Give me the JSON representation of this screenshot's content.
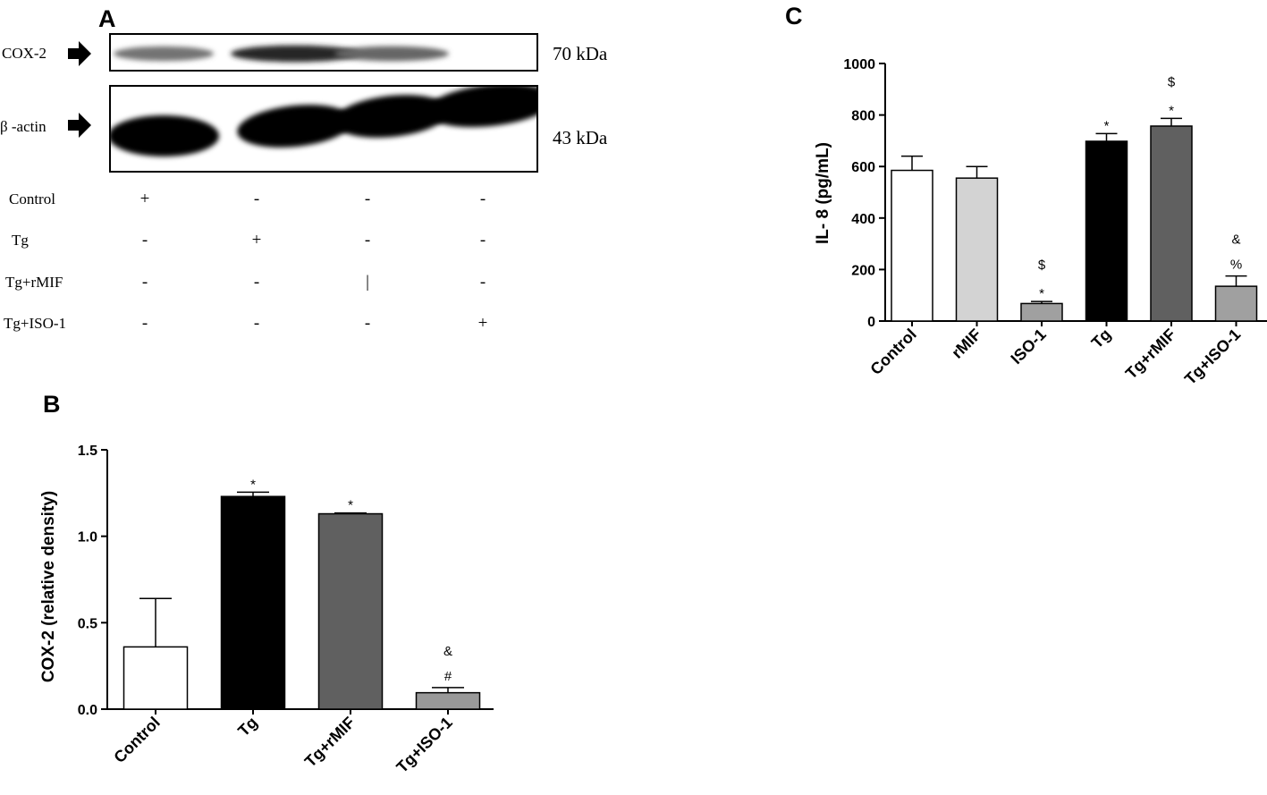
{
  "panels": {
    "a": {
      "letter": "A"
    },
    "b": {
      "letter": "B"
    },
    "c": {
      "letter": "C"
    }
  },
  "blot": {
    "bands": [
      {
        "label": "COX-2",
        "size": "70 kDa",
        "intensities": [
          0.55,
          0.85,
          0.6,
          0.05
        ]
      },
      {
        "label": "β -actin",
        "size": "43 kDa",
        "intensities": [
          1,
          1,
          1,
          1
        ]
      }
    ],
    "conditions": [
      {
        "label": "Control",
        "signs": [
          "+",
          "-",
          "-",
          "-"
        ]
      },
      {
        "label": "Tg",
        "signs": [
          "-",
          "+",
          "-",
          "-"
        ]
      },
      {
        "label": "Tg+rMIF",
        "signs": [
          "-",
          "-",
          "|",
          "-"
        ]
      },
      {
        "label": "Tg+ISO-1",
        "signs": [
          "-",
          "-",
          "-",
          "+"
        ]
      }
    ]
  },
  "chart_data": [
    {
      "type": "bar",
      "panel": "B",
      "ylabel": "COX-2 (relative density)",
      "ylim": [
        0,
        1.5
      ],
      "yticks": [
        "0.0",
        "0.5",
        "1.0",
        "1.5"
      ],
      "ytick_values": [
        0,
        0.5,
        1.0,
        1.5
      ],
      "categories": [
        "Control",
        "Tg",
        "Tg+rMIF",
        "Tg+ISO-1"
      ],
      "values": [
        0.36,
        1.23,
        1.13,
        0.095
      ],
      "errors": [
        0.28,
        0.025,
        0.005,
        0.03
      ],
      "colors": [
        "#ffffff",
        "#000000",
        "#606060",
        "#999999"
      ],
      "annotations": [
        [],
        [
          "*"
        ],
        [
          "*"
        ],
        [
          "#",
          "&"
        ]
      ]
    },
    {
      "type": "bar",
      "panel": "C",
      "ylabel": "IL- 8 (pg/mL)",
      "ylim": [
        0,
        1000
      ],
      "yticks": [
        "0",
        "200",
        "400",
        "600",
        "800",
        "1000"
      ],
      "ytick_values": [
        0,
        200,
        400,
        600,
        800,
        1000
      ],
      "categories": [
        "Control",
        "rMIF",
        "ISO-1",
        "Tg",
        "Tg+rMIF",
        "Tg+ISO-1"
      ],
      "values": [
        585,
        555,
        68,
        698,
        757,
        135
      ],
      "errors": [
        55,
        45,
        8,
        30,
        30,
        40
      ],
      "colors": [
        "#ffffff",
        "#d3d3d3",
        "#a0a0a0",
        "#000000",
        "#606060",
        "#a0a0a0"
      ],
      "annotations": [
        [],
        [],
        [
          "*",
          "$"
        ],
        [
          "*"
        ],
        [
          "*",
          "$"
        ],
        [
          "%",
          "&"
        ]
      ]
    }
  ]
}
